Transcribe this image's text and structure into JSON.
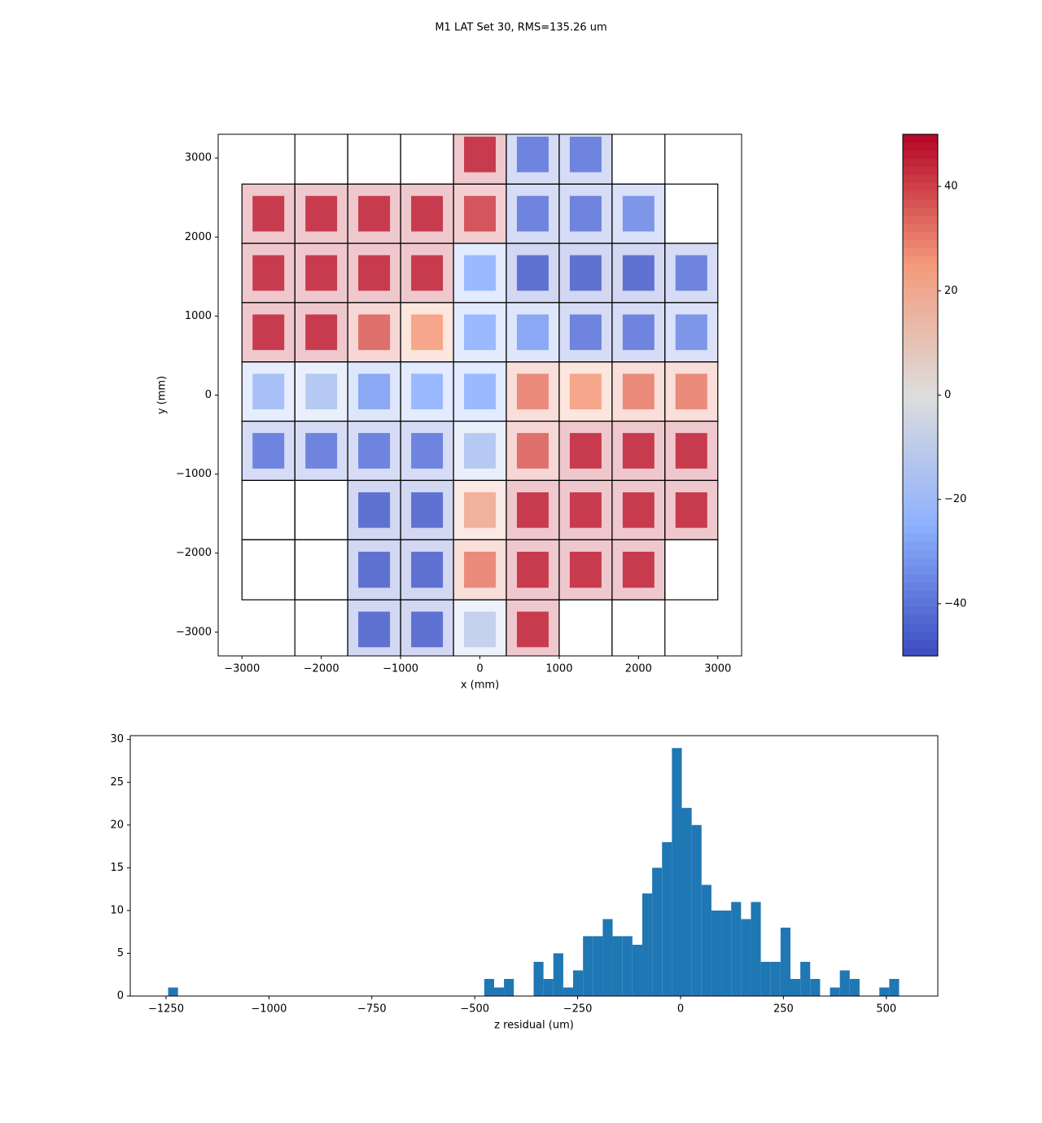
{
  "chart_data": [
    {
      "type": "map",
      "title": "M1 LAT Set 30, RMS=135.26 um",
      "x_label": "x (mm)",
      "y_label": "y (mm)",
      "xlim": [
        -3300,
        3300
      ],
      "ylim": [
        -3300,
        3300
      ],
      "xticks": [
        {
          "value": -3000,
          "label": "−3000"
        },
        {
          "value": -2000,
          "label": "−2000"
        },
        {
          "value": -1000,
          "label": "−1000"
        },
        0,
        1000,
        2000,
        3000
      ],
      "yticks": [
        {
          "value": -3000,
          "label": "−3000"
        },
        {
          "value": -2000,
          "label": "−2000"
        },
        {
          "value": -1000,
          "label": "−1000"
        },
        0,
        1000,
        2000,
        3000
      ],
      "colormap": "coolwarm",
      "clim": [
        -50,
        50
      ],
      "cticks": [
        {
          "value": -40,
          "label": "−40"
        },
        {
          "value": -20,
          "label": "−20"
        },
        0,
        20,
        40
      ],
      "cells": [
        {
          "x": [
            -2333,
            -1667
          ],
          "y": [
            2670,
            3420
          ],
          "value": null
        },
        {
          "x": [
            -1667,
            -1000
          ],
          "y": [
            2670,
            3420
          ],
          "value": null
        },
        {
          "x": [
            -1000,
            -333
          ],
          "y": [
            2670,
            3420
          ],
          "value": null
        },
        {
          "x": [
            -333,
            333
          ],
          "y": [
            2670,
            3420
          ],
          "value": 45
        },
        {
          "x": [
            333,
            1000
          ],
          "y": [
            2670,
            3420
          ],
          "value": -40
        },
        {
          "x": [
            1000,
            1667
          ],
          "y": [
            2670,
            3420
          ],
          "value": -40
        },
        {
          "x": [
            1667,
            2333
          ],
          "y": [
            2670,
            3420
          ],
          "value": null
        },
        {
          "x": [
            -3000,
            -2333
          ],
          "y": [
            1920,
            2670
          ],
          "value": 45
        },
        {
          "x": [
            -2333,
            -1667
          ],
          "y": [
            1920,
            2670
          ],
          "value": 45
        },
        {
          "x": [
            -1667,
            -1000
          ],
          "y": [
            1920,
            2670
          ],
          "value": 45
        },
        {
          "x": [
            -1000,
            -333
          ],
          "y": [
            1920,
            2670
          ],
          "value": 45
        },
        {
          "x": [
            -333,
            333
          ],
          "y": [
            1920,
            2670
          ],
          "value": 40
        },
        {
          "x": [
            333,
            1000
          ],
          "y": [
            1920,
            2670
          ],
          "value": -40
        },
        {
          "x": [
            1000,
            1667
          ],
          "y": [
            1920,
            2670
          ],
          "value": -40
        },
        {
          "x": [
            1667,
            2333
          ],
          "y": [
            1920,
            2670
          ],
          "value": -35
        },
        {
          "x": [
            2333,
            3000
          ],
          "y": [
            1920,
            2670
          ],
          "value": null
        },
        {
          "x": [
            -3000,
            -2333
          ],
          "y": [
            1170,
            1920
          ],
          "value": 45
        },
        {
          "x": [
            -2333,
            -1667
          ],
          "y": [
            1170,
            1920
          ],
          "value": 45
        },
        {
          "x": [
            -1667,
            -1000
          ],
          "y": [
            1170,
            1920
          ],
          "value": 45
        },
        {
          "x": [
            -1000,
            -333
          ],
          "y": [
            1170,
            1920
          ],
          "value": 45
        },
        {
          "x": [
            -333,
            333
          ],
          "y": [
            1170,
            1920
          ],
          "value": -25
        },
        {
          "x": [
            333,
            1000
          ],
          "y": [
            1170,
            1920
          ],
          "value": -45
        },
        {
          "x": [
            1000,
            1667
          ],
          "y": [
            1170,
            1920
          ],
          "value": -45
        },
        {
          "x": [
            1667,
            2333
          ],
          "y": [
            1170,
            1920
          ],
          "value": -45
        },
        {
          "x": [
            2333,
            3000
          ],
          "y": [
            1170,
            1920
          ],
          "value": -40
        },
        {
          "x": [
            -3000,
            -2333
          ],
          "y": [
            420,
            1170
          ],
          "value": 45
        },
        {
          "x": [
            -2333,
            -1667
          ],
          "y": [
            420,
            1170
          ],
          "value": 45
        },
        {
          "x": [
            -1667,
            -1000
          ],
          "y": [
            420,
            1170
          ],
          "value": 35
        },
        {
          "x": [
            -1000,
            -333
          ],
          "y": [
            420,
            1170
          ],
          "value": 25
        },
        {
          "x": [
            -333,
            333
          ],
          "y": [
            420,
            1170
          ],
          "value": -25
        },
        {
          "x": [
            333,
            1000
          ],
          "y": [
            420,
            1170
          ],
          "value": -30
        },
        {
          "x": [
            1000,
            1667
          ],
          "y": [
            420,
            1170
          ],
          "value": -40
        },
        {
          "x": [
            1667,
            2333
          ],
          "y": [
            420,
            1170
          ],
          "value": -40
        },
        {
          "x": [
            2333,
            3000
          ],
          "y": [
            420,
            1170
          ],
          "value": -35
        },
        {
          "x": [
            -3000,
            -2333
          ],
          "y": [
            -330,
            420
          ],
          "value": -20
        },
        {
          "x": [
            -2333,
            -1667
          ],
          "y": [
            -330,
            420
          ],
          "value": -15
        },
        {
          "x": [
            -1667,
            -1000
          ],
          "y": [
            -330,
            420
          ],
          "value": -30
        },
        {
          "x": [
            -1000,
            -333
          ],
          "y": [
            -330,
            420
          ],
          "value": -25
        },
        {
          "x": [
            -333,
            333
          ],
          "y": [
            -330,
            420
          ],
          "value": -25
        },
        {
          "x": [
            333,
            1000
          ],
          "y": [
            -330,
            420
          ],
          "value": 30
        },
        {
          "x": [
            1000,
            1667
          ],
          "y": [
            -330,
            420
          ],
          "value": 25
        },
        {
          "x": [
            1667,
            2333
          ],
          "y": [
            -330,
            420
          ],
          "value": 30
        },
        {
          "x": [
            2333,
            3000
          ],
          "y": [
            -330,
            420
          ],
          "value": 30
        },
        {
          "x": [
            -3000,
            -2333
          ],
          "y": [
            -1080,
            -330
          ],
          "value": -40
        },
        {
          "x": [
            -2333,
            -1667
          ],
          "y": [
            -1080,
            -330
          ],
          "value": -40
        },
        {
          "x": [
            -1667,
            -1000
          ],
          "y": [
            -1080,
            -330
          ],
          "value": -40
        },
        {
          "x": [
            -1000,
            -333
          ],
          "y": [
            -1080,
            -330
          ],
          "value": -40
        },
        {
          "x": [
            -333,
            333
          ],
          "y": [
            -1080,
            -330
          ],
          "value": -15
        },
        {
          "x": [
            333,
            1000
          ],
          "y": [
            -1080,
            -330
          ],
          "value": 35
        },
        {
          "x": [
            1000,
            1667
          ],
          "y": [
            -1080,
            -330
          ],
          "value": 45
        },
        {
          "x": [
            1667,
            2333
          ],
          "y": [
            -1080,
            -330
          ],
          "value": 45
        },
        {
          "x": [
            2333,
            3000
          ],
          "y": [
            -1080,
            -330
          ],
          "value": 45
        },
        {
          "x": [
            -3000,
            -2333
          ],
          "y": [
            -1830,
            -1080
          ],
          "value": null
        },
        {
          "x": [
            -2333,
            -1667
          ],
          "y": [
            -1830,
            -1080
          ],
          "value": null
        },
        {
          "x": [
            -1667,
            -1000
          ],
          "y": [
            -1830,
            -1080
          ],
          "value": -45
        },
        {
          "x": [
            -1000,
            -333
          ],
          "y": [
            -1830,
            -1080
          ],
          "value": -45
        },
        {
          "x": [
            -333,
            333
          ],
          "y": [
            -1830,
            -1080
          ],
          "value": 20
        },
        {
          "x": [
            333,
            1000
          ],
          "y": [
            -1830,
            -1080
          ],
          "value": 45
        },
        {
          "x": [
            1000,
            1667
          ],
          "y": [
            -1830,
            -1080
          ],
          "value": 45
        },
        {
          "x": [
            1667,
            2333
          ],
          "y": [
            -1830,
            -1080
          ],
          "value": 45
        },
        {
          "x": [
            2333,
            3000
          ],
          "y": [
            -1830,
            -1080
          ],
          "value": 45
        },
        {
          "x": [
            -3000,
            -2333
          ],
          "y": [
            -2590,
            -1830
          ],
          "value": null
        },
        {
          "x": [
            -2333,
            -1667
          ],
          "y": [
            -2590,
            -1830
          ],
          "value": null
        },
        {
          "x": [
            -1667,
            -1000
          ],
          "y": [
            -2590,
            -1830
          ],
          "value": -45
        },
        {
          "x": [
            -1000,
            -333
          ],
          "y": [
            -2590,
            -1830
          ],
          "value": -45
        },
        {
          "x": [
            -333,
            333
          ],
          "y": [
            -2590,
            -1830
          ],
          "value": 30
        },
        {
          "x": [
            333,
            1000
          ],
          "y": [
            -2590,
            -1830
          ],
          "value": 45
        },
        {
          "x": [
            1000,
            1667
          ],
          "y": [
            -2590,
            -1830
          ],
          "value": 45
        },
        {
          "x": [
            1667,
            2333
          ],
          "y": [
            -2590,
            -1830
          ],
          "value": 45
        },
        {
          "x": [
            2333,
            3000
          ],
          "y": [
            -2590,
            -1830
          ],
          "value": null
        },
        {
          "x": [
            -2333,
            -1667
          ],
          "y": [
            -3340,
            -2590
          ],
          "value": null
        },
        {
          "x": [
            -1667,
            -1000
          ],
          "y": [
            -3340,
            -2590
          ],
          "value": -45
        },
        {
          "x": [
            -1000,
            -333
          ],
          "y": [
            -3340,
            -2590
          ],
          "value": -45
        },
        {
          "x": [
            -333,
            333
          ],
          "y": [
            -3340,
            -2590
          ],
          "value": -10
        },
        {
          "x": [
            333,
            1000
          ],
          "y": [
            -3340,
            -2590
          ],
          "value": 45
        },
        {
          "x": [
            1000,
            1667
          ],
          "y": [
            -3340,
            -2590
          ],
          "value": null
        },
        {
          "x": [
            1667,
            2333
          ],
          "y": [
            -3340,
            -2590
          ],
          "value": null
        }
      ]
    },
    {
      "type": "histogram",
      "x_label": "z residual (um)",
      "color": "#1f77b4",
      "xlim": [
        -1337,
        625
      ],
      "ylim": [
        0,
        30.45
      ],
      "xticks": [
        {
          "value": -1250,
          "label": "−1250"
        },
        {
          "value": -1000,
          "label": "−1000"
        },
        {
          "value": -750,
          "label": "−750"
        },
        {
          "value": -500,
          "label": "−500"
        },
        {
          "value": -250,
          "label": "−250"
        },
        0,
        250,
        500
      ],
      "yticks": [
        0,
        5,
        10,
        15,
        20,
        25,
        30
      ],
      "bins": [
        -1245,
        -1221,
        -1197,
        -1173,
        -1149,
        -1125,
        -1101,
        -1077,
        -1053,
        -1029,
        -1005,
        -981,
        -957,
        -933,
        -909,
        -885,
        -861,
        -837,
        -813,
        -789,
        -765,
        -741,
        -717,
        -693,
        -669,
        -645,
        -621,
        -597,
        -573,
        -549,
        -525,
        -501,
        -477,
        -453,
        -429,
        -405,
        -381,
        -357,
        -333,
        -309,
        -285,
        -261,
        -237,
        -213,
        -189,
        -165,
        -141,
        -117,
        -93,
        -69,
        -45,
        -21,
        3,
        27,
        51,
        75,
        99,
        123,
        147,
        171,
        195,
        219,
        243,
        267,
        291,
        315,
        339,
        363,
        387,
        411,
        435,
        459,
        483,
        507,
        531
      ],
      "counts": [
        1,
        0,
        0,
        0,
        0,
        0,
        0,
        0,
        0,
        0,
        0,
        0,
        0,
        0,
        0,
        0,
        0,
        0,
        0,
        0,
        0,
        0,
        0,
        0,
        0,
        0,
        0,
        0,
        0,
        0,
        0,
        0,
        2,
        1,
        2,
        0,
        0,
        4,
        2,
        5,
        1,
        3,
        7,
        7,
        9,
        7,
        7,
        6,
        12,
        15,
        18,
        29,
        22,
        20,
        13,
        10,
        10,
        11,
        9,
        11,
        4,
        4,
        8,
        2,
        4,
        2,
        0,
        1,
        3,
        2,
        0,
        0,
        1,
        2
      ]
    }
  ]
}
